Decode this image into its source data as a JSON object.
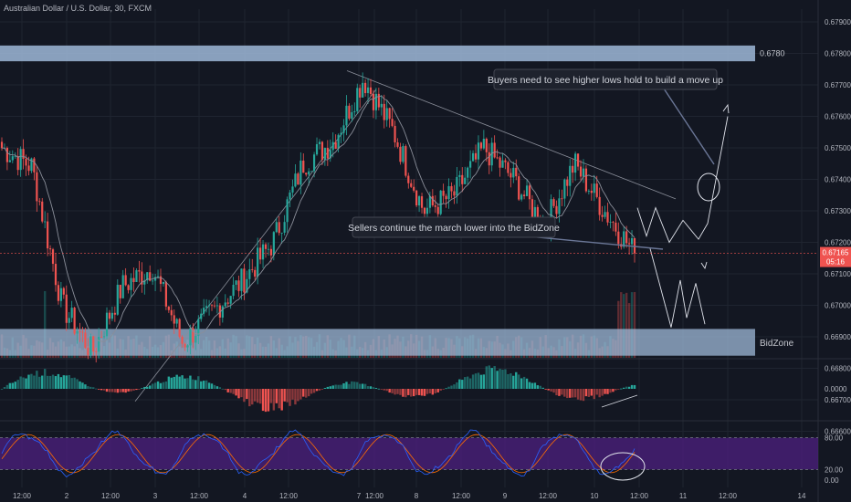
{
  "chart_title": "Australian Dollar / U.S. Dollar, 30, FXCM",
  "colors": {
    "bg": "#131722",
    "grid": "#1f2430",
    "up": "#26a69a",
    "down": "#ef5350",
    "zone": "#9fb9d8",
    "ma": "#8a8e99",
    "stoch_k": "#2962ff",
    "stoch_d": "#ff6d00",
    "stoch_band": "#4a1f7a",
    "price_line": "#ef5350",
    "text": "#b2b5be",
    "axis_label": "#c2c5cc"
  },
  "price_axis": {
    "ticks": [
      "0.67900",
      "0.67800",
      "0.67700",
      "0.67600",
      "0.67500",
      "0.67400",
      "0.67300",
      "0.67200",
      "0.67100",
      "0.67000",
      "0.66900",
      "0.66800",
      "0.66700",
      "0.66600"
    ]
  },
  "date_axis": {
    "ticks": [
      "12:00",
      "2",
      "12:00",
      "3",
      "12:00",
      "4",
      "12:00",
      "7",
      "12:00",
      "8",
      "12:00",
      "9",
      "12:00",
      "10",
      "12:00",
      "11",
      "12:00",
      "14"
    ]
  },
  "current_price": {
    "value": "0.67165",
    "countdown": "05:16"
  },
  "annotations": {
    "upper_zone_label": "0.6780",
    "bidzone_label": "BidZone",
    "buyers_note": "Buyers need to see higher lows hold to build a move up",
    "sellers_note": "Sellers continue the march lower into the BidZone"
  },
  "stoch_axis": {
    "ticks": [
      "80.00",
      "20.00",
      "0.00"
    ]
  },
  "macd_axis": {
    "ticks": [
      "0.0000"
    ]
  },
  "chart_data": {
    "type": "candlestick",
    "title": "Australian Dollar / U.S. Dollar, 30, FXCM",
    "ylim": [
      0.6658,
      0.6795
    ],
    "zones": [
      {
        "label": "0.6780",
        "from": 0.67775,
        "to": 0.67825
      },
      {
        "label": "BidZone",
        "from": 0.6684,
        "to": 0.66925
      }
    ],
    "close_path": [
      {
        "d": "12:00",
        "c": 0.675
      },
      {
        "d": "12:00",
        "c": 0.6744
      },
      {
        "d": "2",
        "c": 0.67
      },
      {
        "d": "2",
        "c": 0.6685
      },
      {
        "d": "12:00",
        "c": 0.6706
      },
      {
        "d": "12:00",
        "c": 0.6712
      },
      {
        "d": "3",
        "c": 0.6688
      },
      {
        "d": "3",
        "c": 0.6698
      },
      {
        "d": "12:00",
        "c": 0.6708
      },
      {
        "d": "4",
        "c": 0.672
      },
      {
        "d": "4",
        "c": 0.6745
      },
      {
        "d": "12:00",
        "c": 0.6752
      },
      {
        "d": "7",
        "c": 0.6772
      },
      {
        "d": "7",
        "c": 0.6755
      },
      {
        "d": "8",
        "c": 0.673
      },
      {
        "d": "8",
        "c": 0.6735
      },
      {
        "d": "12:00",
        "c": 0.675
      },
      {
        "d": "9",
        "c": 0.674
      },
      {
        "d": "9",
        "c": 0.6725
      },
      {
        "d": "10",
        "c": 0.6745
      },
      {
        "d": "10",
        "c": 0.673
      },
      {
        "d": "12:00",
        "c": 0.67165
      }
    ],
    "projections": {
      "bullish": [
        0.6731,
        0.6722,
        0.6731,
        0.672,
        0.6727,
        0.6721,
        0.6726,
        0.676
      ],
      "bearish": [
        0.6718,
        0.6693,
        0.6708,
        0.6696,
        0.6707,
        0.6694
      ]
    },
    "stochastic_levels": [
      80,
      20
    ]
  }
}
